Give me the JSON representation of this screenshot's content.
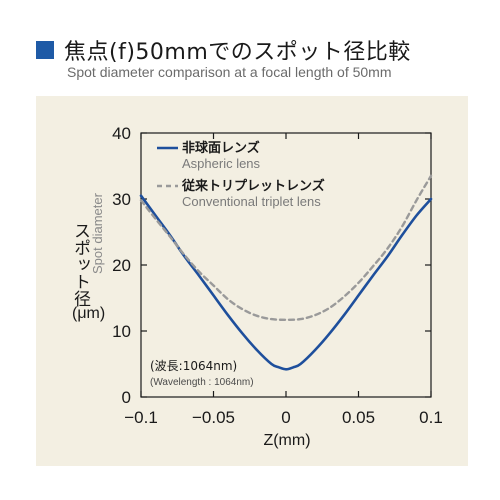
{
  "header": {
    "title_jp": "焦点(f)50mmでのスポット径比較",
    "title_en": "Spot diameter comparison at a focal length of 50mm",
    "accent_color": "#1e5aa6"
  },
  "chart_data": {
    "type": "line",
    "title": "",
    "xlabel": "Z(mm)",
    "ylabel_jp": "スポット径",
    "ylabel_en": "Spot diameter",
    "ylabel_unit": "(μm)",
    "xlim": [
      -0.1,
      0.1
    ],
    "ylim": [
      0,
      40
    ],
    "x_ticks": [
      -0.1,
      -0.05,
      0,
      0.05,
      0.1
    ],
    "x_tick_labels": [
      "−0.1",
      "−0.05",
      "0",
      "0.05",
      "0.1"
    ],
    "y_ticks": [
      0,
      10,
      20,
      30,
      40
    ],
    "y_tick_labels": [
      "0",
      "10",
      "20",
      "30",
      "40"
    ],
    "grid": false,
    "legend_position": "top-right",
    "annotation_jp": "(波長:1064nm)",
    "annotation_en": "(Wavelength : 1064nm)",
    "series": [
      {
        "name": "非球面レンズ",
        "name_en": "Aspheric lens",
        "color": "#1e4f9c",
        "style": "solid",
        "x": [
          -0.1,
          -0.09,
          -0.08,
          -0.07,
          -0.06,
          -0.05,
          -0.04,
          -0.03,
          -0.02,
          -0.01,
          -0.005,
          0,
          0.005,
          0.01,
          0.02,
          0.03,
          0.04,
          0.05,
          0.06,
          0.07,
          0.08,
          0.09,
          0.1
        ],
        "y": [
          30.5,
          27.5,
          24.5,
          21.3,
          18.4,
          15.4,
          12.4,
          9.6,
          7.1,
          5.0,
          4.5,
          4.2,
          4.5,
          5.0,
          7.1,
          9.6,
          12.4,
          15.4,
          18.4,
          21.3,
          24.5,
          27.5,
          30.0
        ]
      },
      {
        "name": "従来トリプレットレンズ",
        "name_en": "Conventional triplet lens",
        "color": "#9a9a9a",
        "style": "dashed",
        "x": [
          -0.1,
          -0.09,
          -0.08,
          -0.07,
          -0.06,
          -0.05,
          -0.04,
          -0.03,
          -0.02,
          -0.01,
          0,
          0.01,
          0.02,
          0.03,
          0.04,
          0.05,
          0.06,
          0.07,
          0.08,
          0.09,
          0.1
        ],
        "y": [
          29.8,
          27.0,
          24.3,
          21.5,
          19.0,
          16.9,
          14.8,
          13.3,
          12.3,
          11.8,
          11.7,
          11.8,
          12.4,
          13.5,
          15.2,
          17.3,
          19.8,
          22.5,
          25.8,
          29.8,
          33.5
        ]
      }
    ]
  }
}
